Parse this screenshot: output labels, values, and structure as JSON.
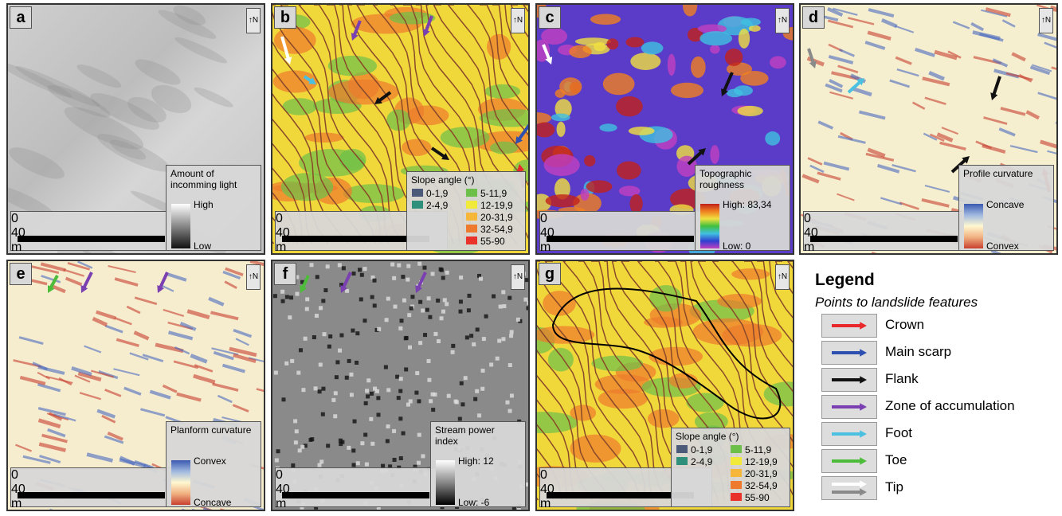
{
  "panels": [
    {
      "letter": "a",
      "legend_title": "Amount of incomming light",
      "legend_top": "High",
      "legend_bottom": "Low"
    },
    {
      "letter": "b",
      "legend_title": "Slope angle (°)"
    },
    {
      "letter": "c",
      "legend_title": "Topographic roughness",
      "legend_top": "High: 83,34",
      "legend_bottom": "Low: 0"
    },
    {
      "letter": "d",
      "legend_title": "Profile curvature",
      "legend_top": "Concave",
      "legend_bottom": "Convex"
    },
    {
      "letter": "e",
      "legend_title": "Planform curvature",
      "legend_top": "Convex",
      "legend_bottom": "Concave"
    },
    {
      "letter": "f",
      "legend_title": "Stream power index",
      "legend_top": "High: 12",
      "legend_bottom": "Low: -6"
    },
    {
      "letter": "g",
      "legend_title": "Slope angle (°)"
    }
  ],
  "slope_classes": [
    {
      "label": "0-1,9",
      "color": "#4a5a78"
    },
    {
      "label": "2-4,9",
      "color": "#2e8f7a"
    },
    {
      "label": "5-11,9",
      "color": "#6cc04a"
    },
    {
      "label": "12-19,9",
      "color": "#f2ea3a"
    },
    {
      "label": "20-31,9",
      "color": "#f5b63a"
    },
    {
      "label": "32-54,9",
      "color": "#ee7a2e"
    },
    {
      "label": "55-90",
      "color": "#e8322a"
    }
  ],
  "scale": {
    "start": "0",
    "end": "40",
    "unit": "m"
  },
  "legend": {
    "title": "Legend",
    "subtitle": "Points to landslide features",
    "items": [
      {
        "label": "Crown",
        "color": "#e8282a"
      },
      {
        "label": "Main scarp",
        "color": "#2c4fb0"
      },
      {
        "label": "Flank",
        "color": "#111111"
      },
      {
        "label": "Zone of accumulation",
        "color": "#7a3fb0"
      },
      {
        "label": "Foot",
        "color": "#4cc0e0"
      },
      {
        "label": "Toe",
        "color": "#4cbc3a"
      },
      {
        "label": "Tip",
        "color": "#ffffff",
        "color2": "#8a8a8a"
      }
    ]
  }
}
